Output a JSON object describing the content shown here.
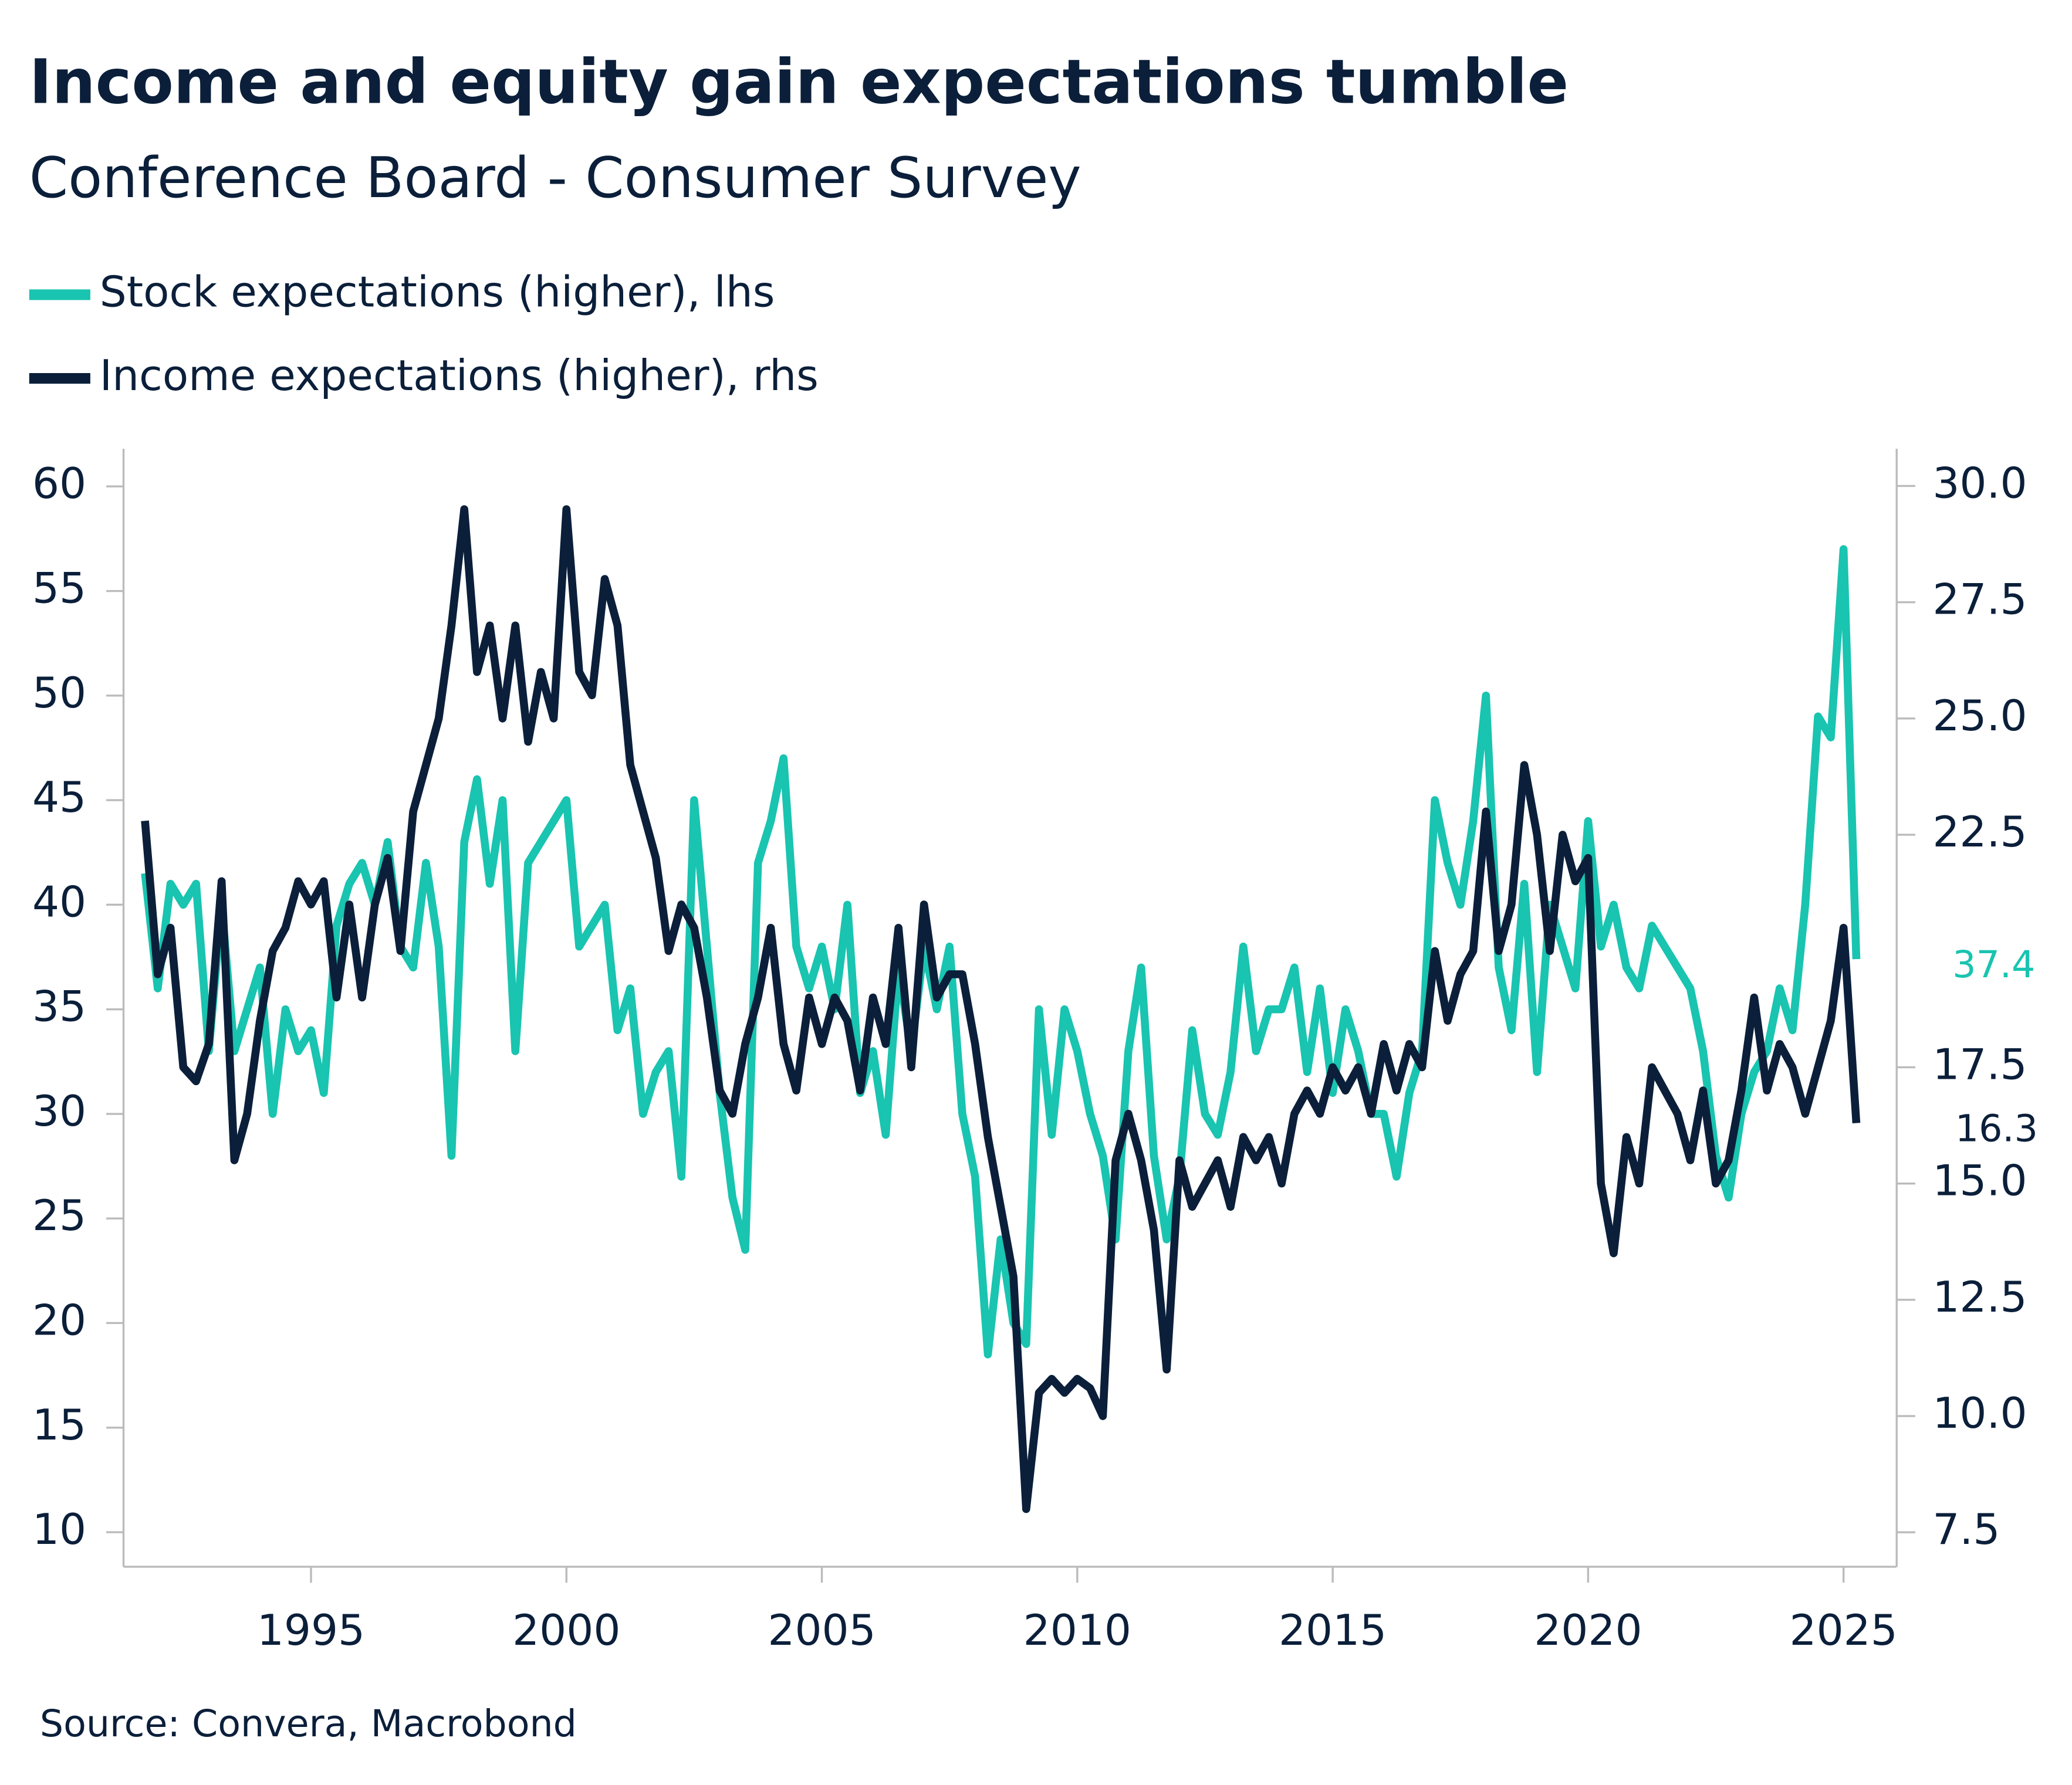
{
  "chart_data": {
    "type": "line",
    "title": "Income and equity gain expectations tumble",
    "subtitle": "Conference Board - Consumer Survey",
    "source": "Source: Convera, Macrobond",
    "x": [
      1991.75,
      1992,
      1992.25,
      1992.5,
      1992.75,
      1993,
      1993.25,
      1993.5,
      1993.75,
      1994,
      1994.25,
      1994.5,
      1994.75,
      1995,
      1995.25,
      1995.5,
      1995.75,
      1996,
      1996.25,
      1996.5,
      1996.75,
      1997,
      1997.25,
      1997.5,
      1997.75,
      1998,
      1998.25,
      1998.5,
      1998.75,
      1999,
      1999.25,
      1999.5,
      1999.75,
      2000,
      2000.25,
      2000.5,
      2000.75,
      2001,
      2001.25,
      2001.5,
      2001.75,
      2002,
      2002.25,
      2002.5,
      2002.75,
      2003,
      2003.25,
      2003.5,
      2003.75,
      2004,
      2004.25,
      2004.5,
      2004.75,
      2005,
      2005.25,
      2005.5,
      2005.75,
      2006,
      2006.25,
      2006.5,
      2006.75,
      2007,
      2007.25,
      2007.5,
      2007.75,
      2008,
      2008.25,
      2008.5,
      2008.75,
      2009,
      2009.25,
      2009.5,
      2009.75,
      2010,
      2010.25,
      2010.5,
      2010.75,
      2011,
      2011.25,
      2011.5,
      2011.75,
      2012,
      2012.25,
      2012.5,
      2012.75,
      2013,
      2013.25,
      2013.5,
      2013.75,
      2014,
      2014.25,
      2014.5,
      2014.75,
      2015,
      2015.25,
      2015.5,
      2015.75,
      2016,
      2016.25,
      2016.5,
      2016.75,
      2017,
      2017.25,
      2017.5,
      2017.75,
      2018,
      2018.25,
      2018.5,
      2018.75,
      2019,
      2019.25,
      2019.5,
      2019.75,
      2020,
      2020.25,
      2020.5,
      2020.75,
      2021,
      2021.25,
      2021.5,
      2021.75,
      2022,
      2022.25,
      2022.5,
      2022.75,
      2023,
      2023.25,
      2023.5,
      2023.75,
      2024,
      2024.25,
      2024.5,
      2024.75,
      2025,
      2025.25
    ],
    "series": [
      {
        "name": "Stock expectations (higher), lhs",
        "color": "#19c4b0",
        "axis": "y",
        "values": [
          41.5,
          36,
          41,
          40,
          41,
          33,
          40,
          33,
          35,
          37,
          30,
          35,
          33,
          34,
          31,
          39,
          41,
          42,
          40,
          43,
          38,
          37,
          42,
          38,
          28,
          43,
          46,
          41,
          45,
          33,
          42,
          43,
          44,
          45,
          38,
          39,
          40,
          34,
          36,
          30,
          32,
          33,
          27,
          45,
          38,
          31,
          26,
          23.5,
          42,
          44,
          47,
          38,
          36,
          38,
          35,
          40,
          31,
          33,
          29,
          37,
          33,
          38,
          35,
          38,
          30,
          27,
          18.5,
          24,
          20,
          19,
          35,
          29,
          35,
          33,
          30,
          28,
          24,
          33,
          37,
          28,
          24,
          27,
          34,
          30,
          29,
          32,
          38,
          33,
          35,
          35,
          37,
          32,
          36,
          31,
          35,
          33,
          30,
          30,
          27,
          31,
          33,
          45,
          42,
          40,
          44,
          50,
          37,
          34,
          41,
          32,
          40,
          38,
          36,
          44,
          38,
          40,
          37,
          36,
          39,
          38,
          37,
          36,
          33,
          28,
          26,
          30,
          32,
          33,
          36,
          34,
          40,
          49,
          48,
          57,
          37.4
        ]
      },
      {
        "name": "Income expectations (higher), rhs",
        "color": "#0b1f3a",
        "axis": "y2",
        "values": [
          22.8,
          19.5,
          20.5,
          17.5,
          17.2,
          18,
          21.5,
          15.5,
          16.5,
          18.5,
          20,
          20.5,
          21.5,
          21,
          21.5,
          19,
          21,
          19,
          21,
          22,
          20,
          23,
          24,
          25,
          27,
          29.5,
          26,
          27,
          25,
          27,
          24.5,
          26,
          25,
          29.5,
          26,
          25.5,
          28,
          27,
          24,
          23,
          22,
          20,
          21,
          20.5,
          19,
          17,
          16.5,
          18,
          19,
          20.5,
          18,
          17,
          19,
          18,
          19,
          18.5,
          17,
          19,
          18,
          20.5,
          17.5,
          21,
          19,
          19.5,
          19.5,
          18,
          16,
          14.5,
          13,
          8,
          10.5,
          10.8,
          10.5,
          10.8,
          10.6,
          10,
          15.5,
          16.5,
          15.5,
          14,
          11,
          15.5,
          14.5,
          15,
          15.5,
          14.5,
          16,
          15.5,
          16,
          15,
          16.5,
          17,
          16.5,
          17.5,
          17,
          17.5,
          16.5,
          18,
          17,
          18,
          17.5,
          20,
          18.5,
          19.5,
          20,
          23,
          20,
          21,
          24,
          22.5,
          20,
          22.5,
          21.5,
          22,
          15,
          13.5,
          16,
          15,
          17.5,
          17,
          16.5,
          15.5,
          17,
          15,
          15.5,
          17,
          19,
          17,
          18,
          17.5,
          16.5,
          17.5,
          18.5,
          20.5,
          16.3
        ]
      }
    ],
    "xlim": [
      1991.33,
      2026.04
    ],
    "xticks": [
      1995,
      2000,
      2005,
      2010,
      2015,
      2020,
      2025
    ],
    "ylim": [
      8.35,
      61.8
    ],
    "yticks": [
      10,
      15,
      20,
      25,
      30,
      35,
      40,
      45,
      50,
      55,
      60
    ],
    "y2lim": [
      6.76,
      30.8
    ],
    "y2ticks": [
      7.5,
      {
        "value": 10,
        "label": "10.0"
      },
      12.5,
      {
        "value": 15,
        "label": "15.0"
      },
      17.5,
      22.5,
      {
        "value": 25,
        "label": "25.0"
      },
      27.5,
      {
        "value": 30,
        "label": "30.0"
      }
    ]
  }
}
